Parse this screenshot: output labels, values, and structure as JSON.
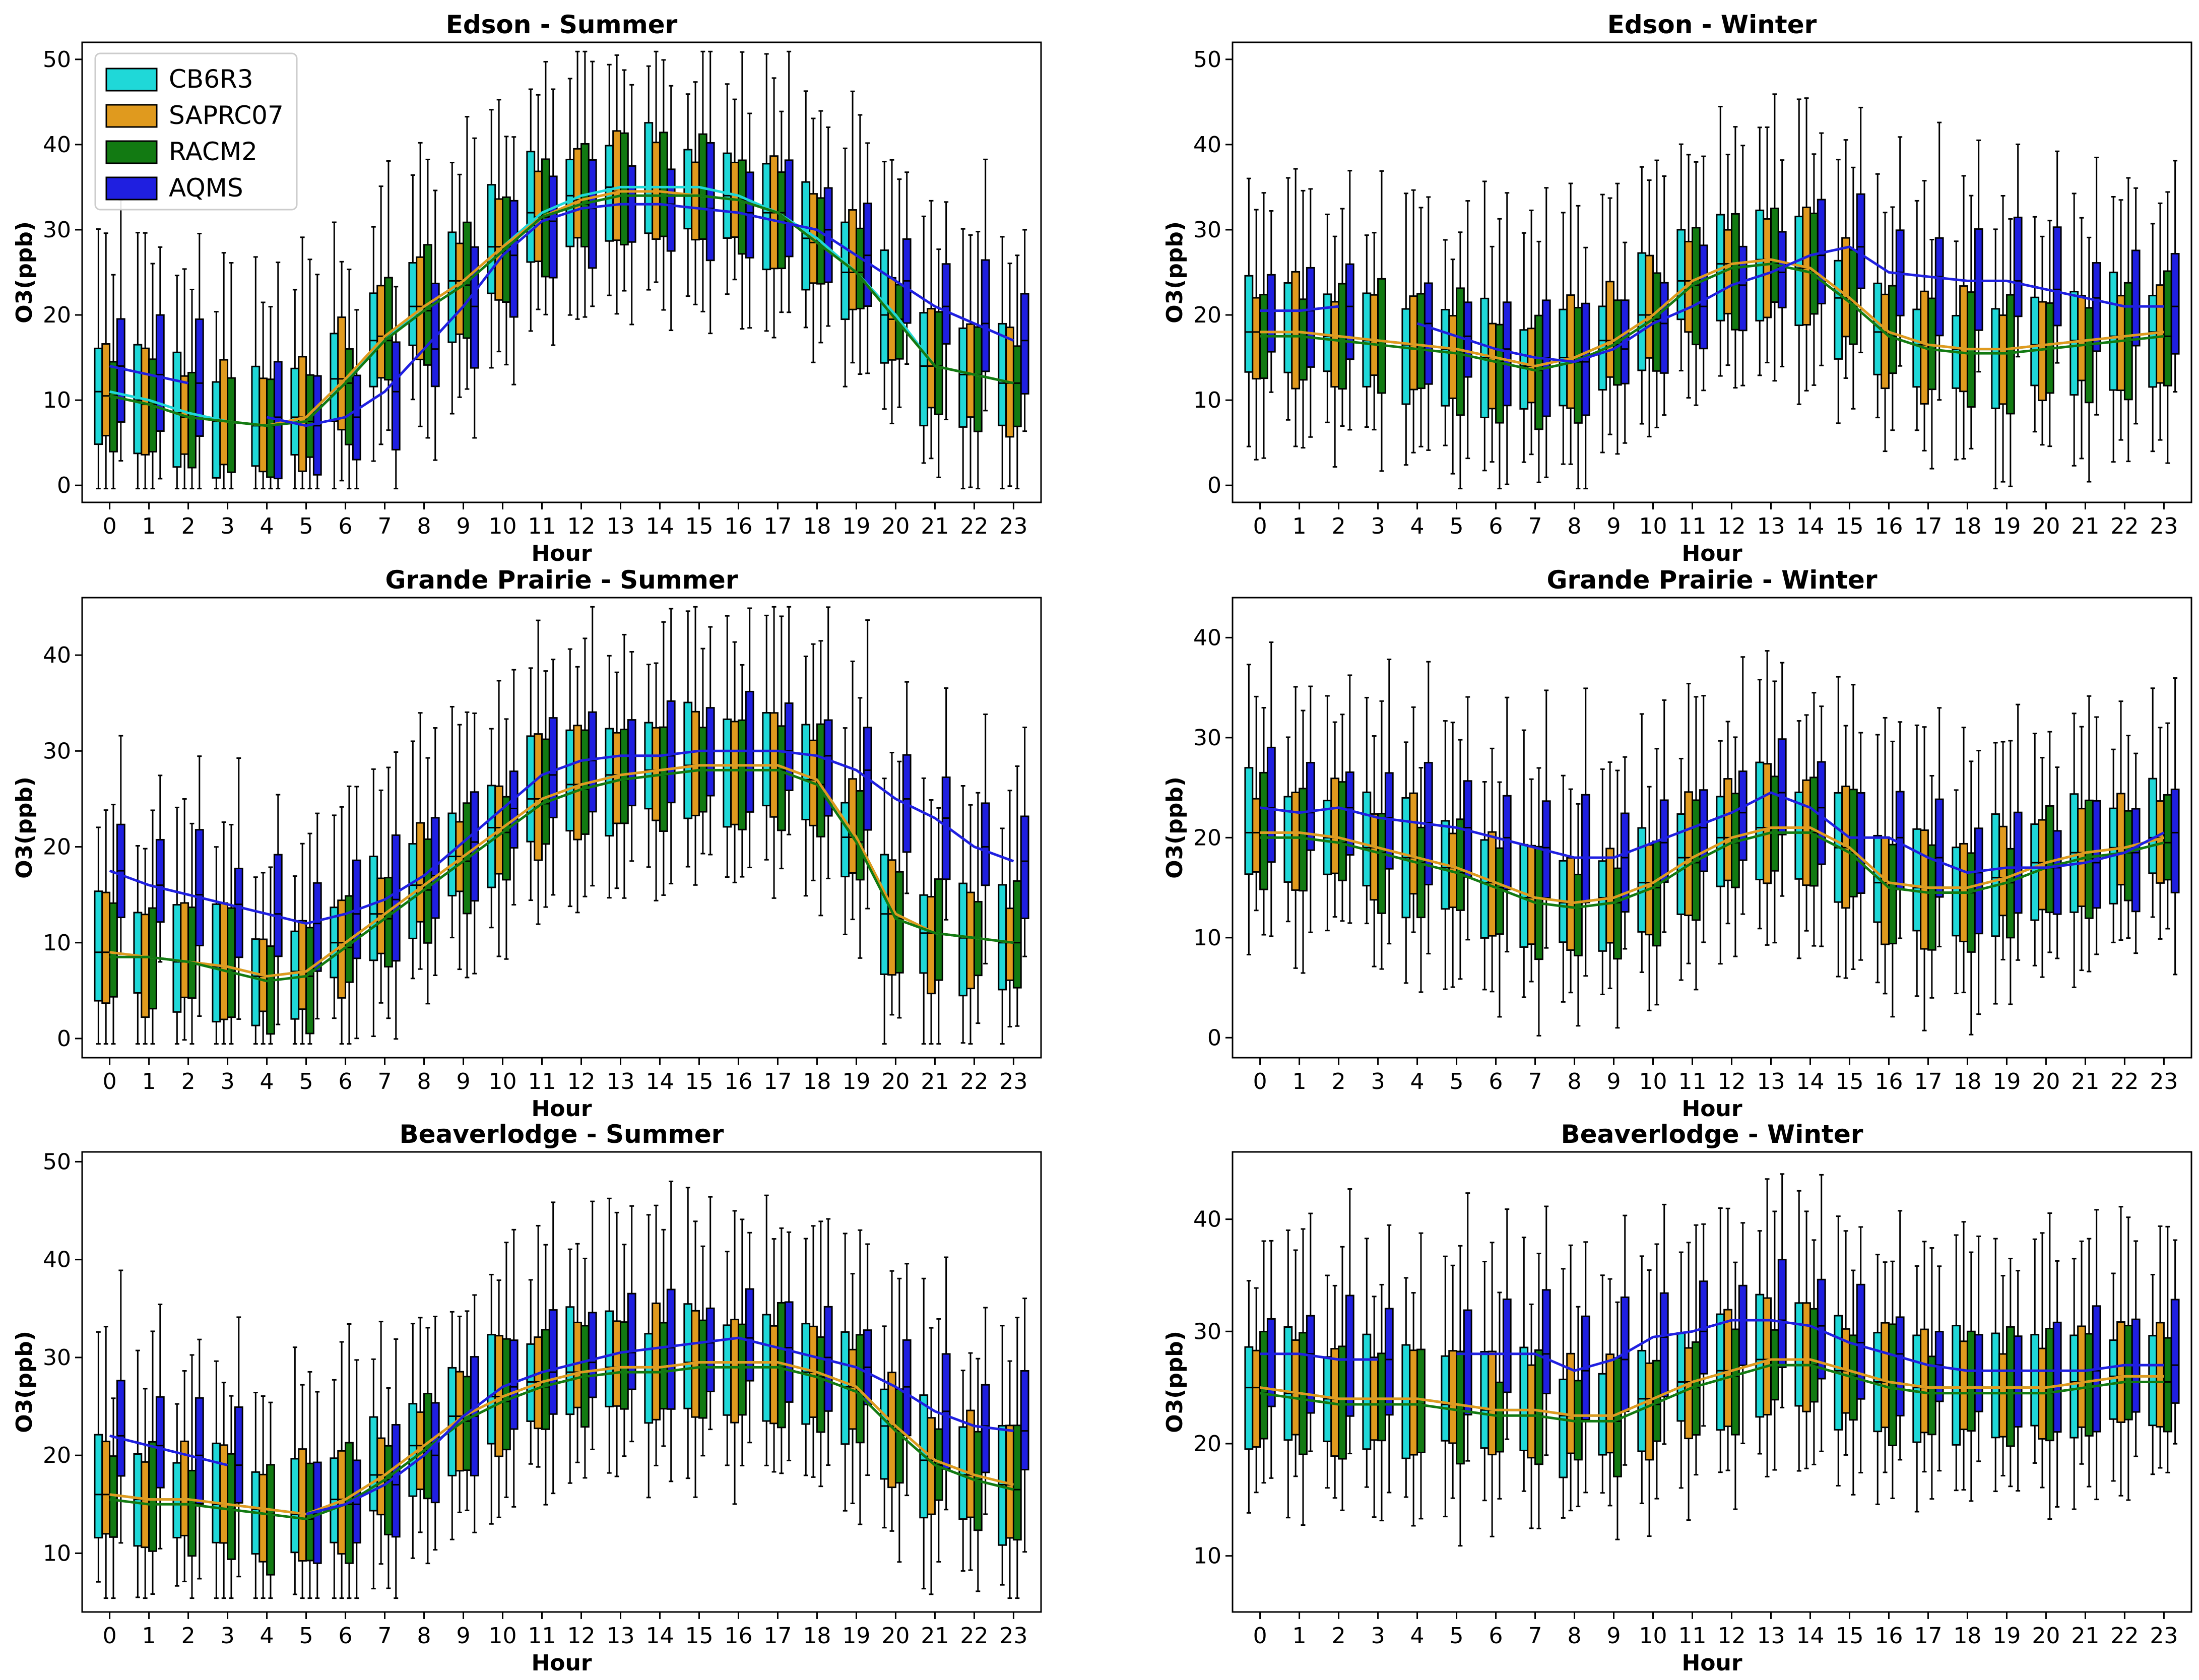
{
  "legend": {
    "placement": "upper-left",
    "entries": [
      {
        "name": "CB6R3",
        "color": "#1fd8d8"
      },
      {
        "name": "SAPRC07",
        "color": "#e09a1e"
      },
      {
        "name": "RACM2",
        "color": "#127a12"
      },
      {
        "name": "AQMS",
        "color": "#1f1fe0"
      }
    ]
  },
  "chart_data": [
    {
      "type": "box",
      "title": "Edson - Summer",
      "xlabel": "Hour",
      "ylabel": "O3(ppb)",
      "ylim": [
        -2,
        52
      ],
      "yticks": [
        0,
        10,
        20,
        30,
        40,
        50
      ],
      "categories": [
        0,
        1,
        2,
        3,
        4,
        5,
        6,
        7,
        8,
        9,
        10,
        11,
        12,
        13,
        14,
        15,
        16,
        17,
        18,
        19,
        20,
        21,
        22,
        23
      ],
      "series": [
        {
          "name": "CB6R3",
          "median": [
            11,
            10,
            8.5,
            7.5,
            7,
            8,
            12.5,
            17,
            21,
            24,
            28,
            32,
            34,
            35,
            35,
            35,
            34,
            32,
            29,
            25,
            20,
            14,
            13,
            12
          ]
        },
        {
          "name": "SAPRC07",
          "median": [
            10.5,
            9.5,
            8,
            7.5,
            7,
            8,
            12.5,
            17.5,
            21,
            24,
            28,
            31.5,
            33.5,
            34.5,
            34.5,
            34,
            33.5,
            32,
            28.5,
            25,
            19.5,
            14,
            13,
            12
          ]
        },
        {
          "name": "RACM2",
          "median": [
            10.5,
            9.5,
            8,
            7.5,
            7,
            7.5,
            12,
            17,
            20.5,
            23.5,
            27.5,
            31.5,
            33,
            34,
            34,
            34,
            33.5,
            32,
            28.5,
            25,
            19.5,
            14,
            13,
            12
          ]
        },
        {
          "name": "AQMS",
          "median": [
            14,
            13,
            12,
            null,
            8,
            7,
            8,
            11,
            16,
            21,
            27,
            31,
            32.5,
            33,
            33,
            32.5,
            32,
            31,
            30,
            27,
            24,
            21,
            19,
            17
          ]
        }
      ]
    },
    {
      "type": "box",
      "title": "Edson - Winter",
      "xlabel": "Hour",
      "ylabel": "O3(ppb)",
      "ylim": [
        -2,
        52
      ],
      "yticks": [
        0,
        10,
        20,
        30,
        40,
        50
      ],
      "categories": [
        0,
        1,
        2,
        3,
        4,
        5,
        6,
        7,
        8,
        9,
        10,
        11,
        12,
        13,
        14,
        15,
        16,
        17,
        18,
        19,
        20,
        21,
        22,
        23
      ],
      "series": [
        {
          "name": "CB6R3",
          "median": [
            18,
            18,
            17.5,
            17,
            16.5,
            16,
            15,
            14,
            15,
            17,
            20,
            24,
            26,
            26.5,
            25.5,
            22,
            18,
            16.5,
            16,
            16,
            16.5,
            17,
            17.5,
            18
          ]
        },
        {
          "name": "SAPRC07",
          "median": [
            18,
            18,
            17.5,
            17,
            16.5,
            16,
            15,
            14,
            15,
            17,
            20,
            24,
            26,
            26.5,
            25.5,
            22,
            18,
            16.5,
            16,
            16,
            16.5,
            17,
            17.5,
            18
          ]
        },
        {
          "name": "RACM2",
          "median": [
            17.5,
            17.5,
            17,
            16.5,
            16,
            15.5,
            14.5,
            13.5,
            14.5,
            16.5,
            19.5,
            23.5,
            25.5,
            26,
            25,
            21.5,
            17.5,
            16,
            15.5,
            15.5,
            16,
            16.5,
            17,
            17.5
          ]
        },
        {
          "name": "AQMS",
          "median": [
            20.5,
            20.5,
            21,
            null,
            19,
            17.5,
            16,
            15,
            14.5,
            16,
            19,
            21,
            23.5,
            25,
            27,
            28,
            25,
            24.5,
            24,
            24,
            23,
            22,
            21,
            21
          ]
        }
      ]
    },
    {
      "type": "box",
      "title": "Grande Prairie - Summer",
      "xlabel": "Hour",
      "ylabel": "O3(ppb)",
      "ylim": [
        -2,
        46
      ],
      "yticks": [
        0,
        10,
        20,
        30,
        40
      ],
      "categories": [
        0,
        1,
        2,
        3,
        4,
        5,
        6,
        7,
        8,
        9,
        10,
        11,
        12,
        13,
        14,
        15,
        16,
        17,
        18,
        19,
        20,
        21,
        22,
        23
      ],
      "series": [
        {
          "name": "CB6R3",
          "median": [
            9,
            8.5,
            8,
            7.5,
            6.5,
            7,
            10,
            13,
            16,
            19,
            22,
            25,
            26.5,
            27.5,
            28,
            28.5,
            28.5,
            28.5,
            27,
            21,
            13,
            11,
            10.5,
            10
          ]
        },
        {
          "name": "SAPRC07",
          "median": [
            9,
            8.5,
            8,
            7.5,
            6.5,
            7,
            10,
            13,
            16,
            19,
            22,
            25,
            26.5,
            27.5,
            28,
            28.5,
            28.5,
            28.5,
            27,
            21,
            13,
            11,
            10.5,
            10
          ]
        },
        {
          "name": "RACM2",
          "median": [
            8.5,
            8.5,
            8,
            7,
            6,
            6.5,
            9.5,
            12.5,
            15.5,
            18.5,
            21.5,
            24.5,
            26,
            27,
            27.5,
            28,
            28,
            28,
            26.5,
            20.5,
            12.5,
            11,
            10.5,
            10
          ]
        },
        {
          "name": "AQMS",
          "median": [
            17.5,
            16,
            15,
            14,
            13,
            12,
            13,
            14.5,
            17,
            20.5,
            24,
            27.5,
            29,
            29.5,
            29.5,
            30,
            30,
            30,
            29.5,
            28,
            25,
            23,
            20,
            18.5
          ]
        }
      ]
    },
    {
      "type": "box",
      "title": "Grande Prairie - Winter",
      "xlabel": "Hour",
      "ylabel": "O3(ppb)",
      "ylim": [
        -2,
        44
      ],
      "yticks": [
        0,
        10,
        20,
        30,
        40
      ],
      "categories": [
        0,
        1,
        2,
        3,
        4,
        5,
        6,
        7,
        8,
        9,
        10,
        11,
        12,
        13,
        14,
        15,
        16,
        17,
        18,
        19,
        20,
        21,
        22,
        23
      ],
      "series": [
        {
          "name": "CB6R3",
          "median": [
            20.5,
            20.5,
            20,
            19,
            18,
            17,
            15.5,
            14,
            13.5,
            14,
            15.5,
            18,
            20,
            21,
            21,
            19,
            15.5,
            15,
            15,
            16,
            17.5,
            18.5,
            19,
            20
          ]
        },
        {
          "name": "SAPRC07",
          "median": [
            20.5,
            20.5,
            20,
            19,
            18,
            17,
            15.5,
            14,
            13.5,
            14,
            15.5,
            18,
            20,
            21,
            21,
            19,
            15.5,
            15,
            15,
            16,
            17.5,
            18.5,
            19,
            20
          ]
        },
        {
          "name": "RACM2",
          "median": [
            20,
            20,
            19.5,
            18.5,
            17.5,
            16.5,
            15,
            13.5,
            13,
            13.5,
            15,
            17.5,
            19.5,
            20.5,
            20.5,
            18.5,
            15,
            14.5,
            14.5,
            15.5,
            17,
            18,
            18.5,
            19.5
          ]
        },
        {
          "name": "AQMS",
          "median": [
            23,
            22.5,
            23,
            22,
            21.5,
            21,
            20,
            19,
            18,
            18,
            19.5,
            21,
            22.5,
            24.5,
            23,
            20,
            20,
            18,
            16.5,
            17,
            17,
            17.5,
            18.5,
            20.5
          ]
        }
      ]
    },
    {
      "type": "box",
      "title": "Beaverlodge - Summer",
      "xlabel": "Hour",
      "ylabel": "O3(ppb)",
      "ylim": [
        4,
        51
      ],
      "yticks": [
        10,
        20,
        30,
        40,
        50
      ],
      "categories": [
        0,
        1,
        2,
        3,
        4,
        5,
        6,
        7,
        8,
        9,
        10,
        11,
        12,
        13,
        14,
        15,
        16,
        17,
        18,
        19,
        20,
        21,
        22,
        23
      ],
      "series": [
        {
          "name": "CB6R3",
          "median": [
            16,
            15.5,
            15.5,
            15,
            14.5,
            14,
            15.5,
            18,
            21,
            24,
            26,
            27.5,
            28.5,
            29,
            29,
            29.5,
            29.5,
            29.5,
            28.5,
            27,
            23,
            19.5,
            18,
            17
          ]
        },
        {
          "name": "SAPRC07",
          "median": [
            16,
            15.5,
            15.5,
            15,
            14.5,
            14,
            15.5,
            18,
            21,
            24,
            26,
            27.5,
            28.5,
            29,
            29,
            29.5,
            29.5,
            29.5,
            28.5,
            27,
            23,
            19.5,
            18,
            17
          ]
        },
        {
          "name": "RACM2",
          "median": [
            15.5,
            15,
            15,
            14.5,
            14,
            13.5,
            15,
            17.5,
            20.5,
            23.5,
            25.5,
            27,
            28,
            28.5,
            28.5,
            29,
            29,
            29,
            28,
            26.5,
            22.5,
            19,
            17.5,
            16.5
          ]
        },
        {
          "name": "AQMS",
          "median": [
            22,
            21,
            20,
            19,
            null,
            14,
            15,
            17,
            20,
            24,
            27,
            28.5,
            29.5,
            30.5,
            31,
            31.5,
            32,
            31,
            30,
            29,
            27,
            24.5,
            23,
            22.5
          ]
        }
      ]
    },
    {
      "type": "box",
      "title": "Beaverlodge - Winter",
      "xlabel": "Hour",
      "ylabel": "O3(ppb)",
      "ylim": [
        5,
        46
      ],
      "yticks": [
        10,
        20,
        30,
        40
      ],
      "categories": [
        0,
        1,
        2,
        3,
        4,
        5,
        6,
        7,
        8,
        9,
        10,
        11,
        12,
        13,
        14,
        15,
        16,
        17,
        18,
        19,
        20,
        21,
        22,
        23
      ],
      "series": [
        {
          "name": "CB6R3",
          "median": [
            25,
            24.5,
            24,
            24,
            24,
            23.5,
            23,
            23,
            22.5,
            22.5,
            24,
            25.5,
            26.5,
            27.5,
            27.5,
            26.5,
            25.5,
            25,
            25,
            25,
            25,
            25.5,
            26,
            26
          ]
        },
        {
          "name": "SAPRC07",
          "median": [
            25,
            24.5,
            24,
            24,
            24,
            23.5,
            23,
            23,
            22.5,
            22.5,
            24,
            25.5,
            26.5,
            27.5,
            27.5,
            26.5,
            25.5,
            25,
            25,
            25,
            25,
            25.5,
            26,
            26
          ]
        },
        {
          "name": "RACM2",
          "median": [
            24.5,
            24,
            23.5,
            23.5,
            23.5,
            23,
            22.5,
            22.5,
            22,
            22,
            23.5,
            25,
            26,
            27,
            27,
            26,
            25,
            24.5,
            24.5,
            24.5,
            24.5,
            25,
            25.5,
            25.5
          ]
        },
        {
          "name": "AQMS",
          "median": [
            28,
            28,
            27.5,
            27.5,
            null,
            28,
            28,
            28,
            26.5,
            27.5,
            29.5,
            30,
            31,
            31,
            30.5,
            29,
            28,
            27,
            26.5,
            26.5,
            26.5,
            26.5,
            27,
            27
          ]
        }
      ]
    }
  ]
}
